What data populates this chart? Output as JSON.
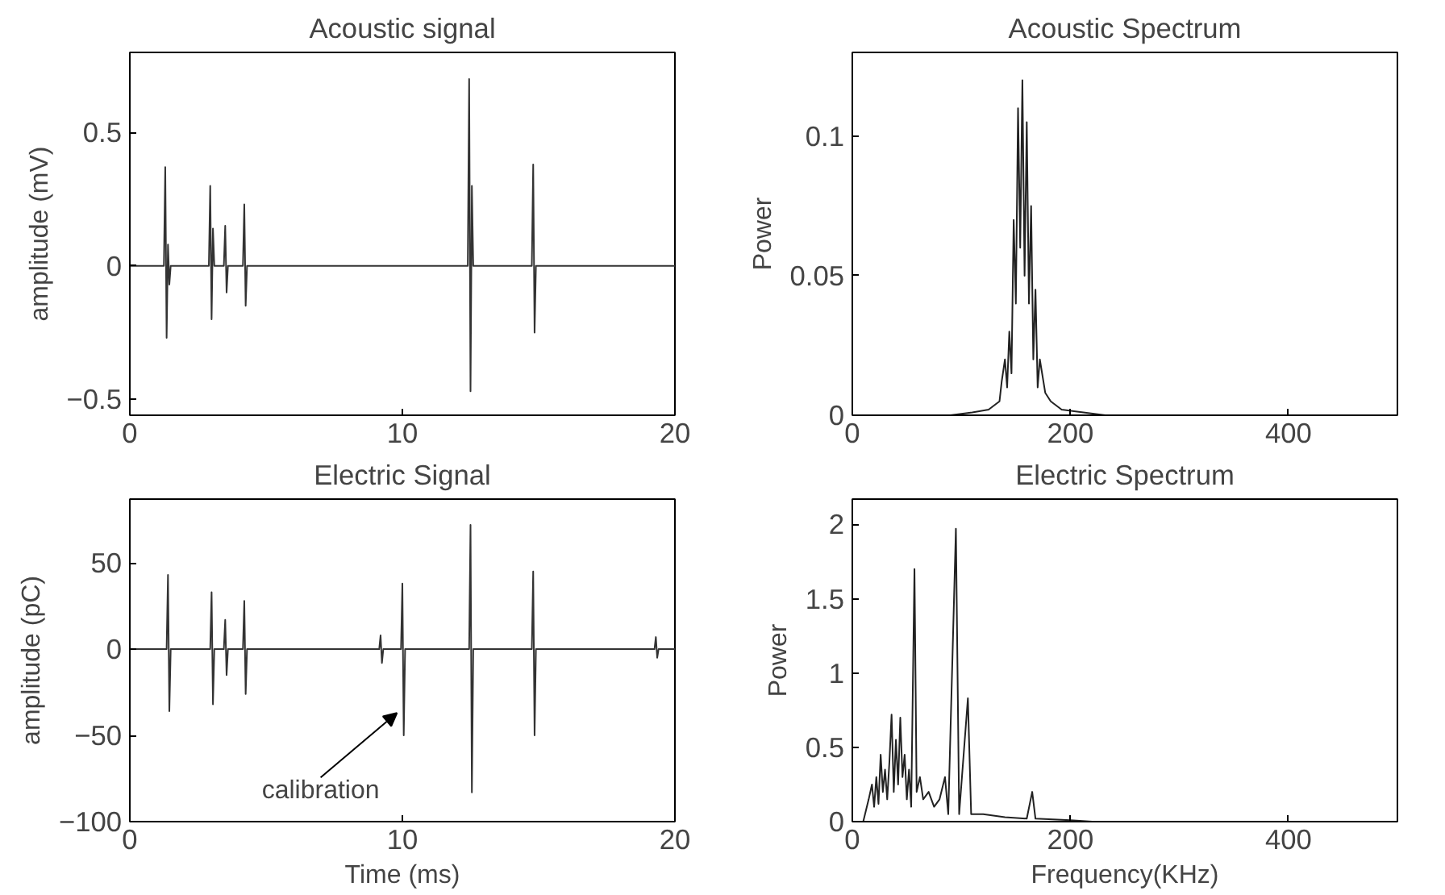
{
  "chart_data": [
    {
      "type": "line",
      "title": "Acoustic signal",
      "ylabel": "amplitude (mV)",
      "xlim": [
        0,
        20
      ],
      "ylim": [
        -0.56,
        0.8
      ],
      "xticks": [
        0,
        10,
        20
      ],
      "yticks": [
        -0.5,
        0,
        0.5
      ],
      "grid": false,
      "series": [
        {
          "color": "#333333",
          "x": [
            0,
            1.25,
            1.3,
            1.35,
            1.4,
            1.45,
            1.5,
            2.9,
            2.95,
            3.0,
            3.05,
            3.1,
            3.45,
            3.5,
            3.55,
            3.6,
            4.15,
            4.2,
            4.25,
            4.3,
            12.4,
            12.45,
            12.5,
            12.55,
            12.6,
            14.75,
            14.8,
            14.85,
            14.9,
            20
          ],
          "values": [
            0,
            0,
            0.37,
            -0.27,
            0.08,
            -0.07,
            0,
            0,
            0.3,
            -0.2,
            0.14,
            0,
            0,
            0.15,
            -0.1,
            0,
            0,
            0.23,
            -0.15,
            0,
            0,
            0.7,
            -0.47,
            0.3,
            0,
            0,
            0.38,
            -0.25,
            0,
            0
          ]
        }
      ]
    },
    {
      "type": "line",
      "title": "Acoustic Spectrum",
      "ylabel": "Power",
      "xlim": [
        0,
        500
      ],
      "ylim": [
        0,
        0.13
      ],
      "xticks": [
        0,
        200,
        400
      ],
      "yticks": [
        0,
        0.05,
        0.1
      ],
      "grid": false,
      "series": [
        {
          "color": "#222222",
          "x": [
            0,
            90,
            110,
            125,
            135,
            137,
            140,
            142,
            144,
            146,
            148,
            150,
            152,
            154,
            156,
            158,
            160,
            162,
            164,
            166,
            168,
            170,
            172,
            177,
            182,
            192,
            212,
            232,
            500
          ],
          "values": [
            0,
            0,
            0.001,
            0.002,
            0.005,
            0.012,
            0.02,
            0.01,
            0.03,
            0.015,
            0.07,
            0.04,
            0.11,
            0.06,
            0.12,
            0.05,
            0.105,
            0.04,
            0.075,
            0.02,
            0.045,
            0.01,
            0.02,
            0.008,
            0.005,
            0.002,
            0.001,
            0,
            0
          ]
        }
      ]
    },
    {
      "type": "line",
      "title": "Electric Signal",
      "xlabel": "Time (ms)",
      "ylabel": "amplitude (pC)",
      "xlim": [
        0,
        20
      ],
      "ylim": [
        -100,
        87
      ],
      "xticks": [
        0,
        10,
        20
      ],
      "yticks": [
        -100,
        -50,
        0,
        50
      ],
      "grid": false,
      "annotations": [
        {
          "text": "calibration",
          "x": 9.8,
          "y": -37
        }
      ],
      "series": [
        {
          "color": "#333333",
          "x": [
            0,
            1.35,
            1.4,
            1.45,
            1.5,
            2.95,
            3.0,
            3.05,
            3.1,
            3.45,
            3.5,
            3.55,
            3.6,
            4.15,
            4.2,
            4.25,
            4.3,
            9.15,
            9.2,
            9.25,
            9.3,
            9.95,
            10.0,
            10.05,
            10.1,
            12.45,
            12.5,
            12.55,
            12.6,
            14.75,
            14.8,
            14.85,
            14.9,
            19.25,
            19.3,
            19.35,
            19.4,
            20
          ],
          "values": [
            0,
            0,
            43,
            -36,
            0,
            0,
            33,
            -32,
            0,
            0,
            17,
            -15,
            0,
            0,
            28,
            -26,
            0,
            0,
            8,
            -8,
            0,
            0,
            38,
            -50,
            0,
            0,
            72,
            -83,
            0,
            0,
            45,
            -50,
            0,
            0,
            7,
            -5,
            0,
            0
          ]
        }
      ]
    },
    {
      "type": "line",
      "title": "Electric Spectrum",
      "xlabel": "Frequency(KHz)",
      "ylabel": "Power",
      "xlim": [
        0,
        500
      ],
      "ylim": [
        0,
        2.17
      ],
      "xticks": [
        0,
        200,
        400
      ],
      "yticks": [
        0,
        0.5,
        1,
        1.5,
        2
      ],
      "grid": false,
      "series": [
        {
          "color": "#222222",
          "x": [
            0,
            10,
            15,
            18,
            20,
            22,
            24,
            26,
            28,
            30,
            32,
            34,
            36,
            38,
            40,
            42,
            44,
            46,
            48,
            50,
            52,
            54,
            57,
            59,
            62,
            65,
            70,
            75,
            80,
            85,
            88,
            95,
            98,
            106,
            109,
            120,
            140,
            160,
            165,
            168,
            200,
            220,
            500
          ],
          "values": [
            0,
            0,
            0.15,
            0.25,
            0.1,
            0.3,
            0.12,
            0.45,
            0.2,
            0.35,
            0.15,
            0.4,
            0.72,
            0.2,
            0.55,
            0.25,
            0.7,
            0.3,
            0.45,
            0.15,
            0.35,
            0.1,
            1.7,
            0.2,
            0.3,
            0.15,
            0.2,
            0.1,
            0.15,
            0.3,
            0.05,
            1.97,
            0.05,
            0.83,
            0.05,
            0.05,
            0.03,
            0.02,
            0.2,
            0.02,
            0.01,
            0,
            0
          ]
        }
      ]
    }
  ]
}
